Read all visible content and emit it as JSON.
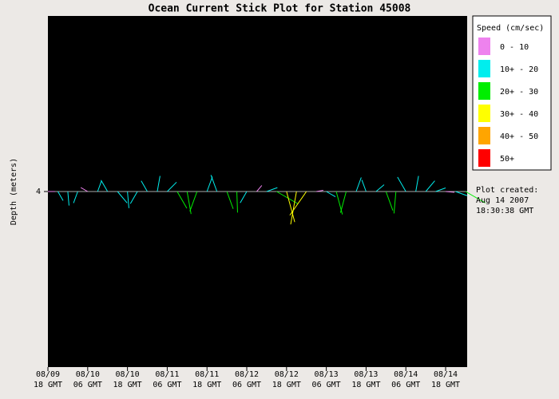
{
  "chart_data": {
    "type": "stick",
    "title": "Ocean Current Stick Plot for Station 45008",
    "y_label": "Depth (meters)",
    "ylim": [
      0,
      8
    ],
    "yticks": [
      4
    ],
    "depth": 4,
    "xlim": [
      0,
      126.5
    ],
    "xticks": [
      {
        "value": 0,
        "label": "08/09 18 GMT"
      },
      {
        "value": 12,
        "label": "08/10 06 GMT"
      },
      {
        "value": 24,
        "label": "08/10 18 GMT"
      },
      {
        "value": 36,
        "label": "08/11 06 GMT"
      },
      {
        "value": 48,
        "label": "08/11 18 GMT"
      },
      {
        "value": 60,
        "label": "08/12 06 GMT"
      },
      {
        "value": 72,
        "label": "08/12 18 GMT"
      },
      {
        "value": 84,
        "label": "08/13 06 GMT"
      },
      {
        "value": 96,
        "label": "08/13 18 GMT"
      },
      {
        "value": 108,
        "label": "08/14 06 GMT"
      },
      {
        "value": 120,
        "label": "08/14 18 GMT"
      }
    ],
    "x": [
      0,
      3,
      6,
      9,
      12,
      15,
      18,
      21,
      24,
      27,
      30,
      33,
      36,
      39,
      42,
      45,
      48,
      51,
      54,
      57,
      60,
      63,
      66,
      69,
      72,
      75,
      78,
      81,
      84,
      87,
      90,
      93,
      96,
      99,
      102,
      105,
      108,
      111,
      114,
      117,
      120,
      123,
      126
    ],
    "speed": [
      8,
      12,
      16,
      14,
      9,
      13,
      15,
      17,
      19,
      16,
      14,
      18,
      15,
      22,
      26,
      24,
      18,
      20,
      21,
      24,
      15,
      9,
      13,
      28,
      36,
      38,
      33,
      8,
      12,
      27,
      25,
      17,
      14,
      12,
      23,
      25,
      19,
      18,
      16,
      12,
      10,
      14,
      26
    ],
    "direction": [
      90,
      150,
      175,
      200,
      300,
      20,
      330,
      140,
      175,
      210,
      330,
      10,
      45,
      150,
      170,
      200,
      20,
      340,
      160,
      178,
      210,
      40,
      70,
      120,
      165,
      190,
      215,
      80,
      120,
      165,
      195,
      20,
      340,
      50,
      160,
      185,
      330,
      10,
      40,
      70,
      95,
      110,
      120
    ],
    "legend": {
      "title": "Speed (cm/sec)",
      "bins": [
        {
          "label": "0 - 10",
          "min": 0,
          "color": "#ee82ee"
        },
        {
          "label": "10+ - 20",
          "min": 10,
          "color": "#00eeee"
        },
        {
          "label": "20+ - 30",
          "min": 20,
          "color": "#00ee00"
        },
        {
          "label": "30+ - 40",
          "min": 30,
          "color": "#ffff00"
        },
        {
          "label": "40+ - 50",
          "min": 40,
          "color": "#ffa500"
        },
        {
          "label": "50+",
          "min": 50,
          "color": "#ff0000"
        }
      ]
    },
    "annotation": [
      "Plot created:",
      "Aug 14 2007",
      "18:30:38 GMT"
    ]
  }
}
